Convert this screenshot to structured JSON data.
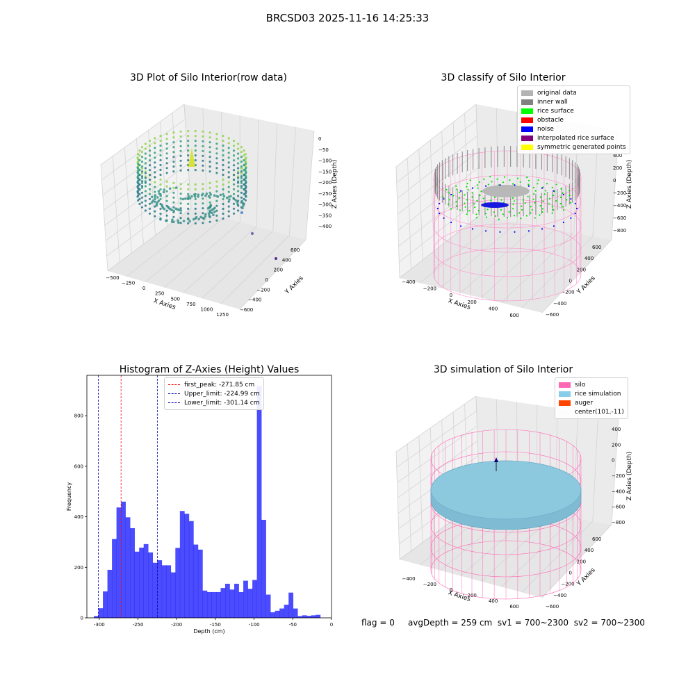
{
  "suptitle": "BRCSD03 2025-11-16 14:25:33",
  "status": {
    "flag": "flag = 0",
    "avgDepth": "avgDepth = 259 cm",
    "sv1": "sv1 = 700~2300",
    "sv2": "sv2 = 700~2300"
  },
  "panels": {
    "raw": {
      "title": "3D Plot of Silo Interior(row data)",
      "xlabel": "X Axies",
      "ylabel": "Y Axies",
      "zlabel": "Z Axies (Depth)",
      "xticks": [
        "−500",
        "−250",
        "0",
        "250",
        "500",
        "750",
        "1000",
        "1250"
      ],
      "yticks": [
        "600",
        "400",
        "200",
        "0",
        "−200",
        "−400",
        "−600"
      ],
      "zticks": [
        "0",
        "−50",
        "−100",
        "−150",
        "−200",
        "−250",
        "−300",
        "−350",
        "−400"
      ]
    },
    "classify": {
      "title": "3D classify of Silo Interior",
      "xlabel": "X Axies",
      "ylabel": "Y Axies",
      "zlabel": "Z Axies (Depth)",
      "xticks": [
        "−400",
        "−200",
        "0",
        "200",
        "400",
        "600"
      ],
      "yticks": [
        "600",
        "400",
        "200",
        "0",
        "−200",
        "−400",
        "−600"
      ],
      "zticks": [
        "400",
        "200",
        "0",
        "−200",
        "−400",
        "−600",
        "−800"
      ],
      "legend": [
        {
          "label": "original data",
          "color": "#b3b3b3"
        },
        {
          "label": "inner wall",
          "color": "#808080"
        },
        {
          "label": "rice surface",
          "color": "#00ff00"
        },
        {
          "label": "obstacle",
          "color": "#ff0000"
        },
        {
          "label": "noise",
          "color": "#0000ff"
        },
        {
          "label": "interpolated rice surface",
          "color": "#800080"
        },
        {
          "label": "symmetric generated points",
          "color": "#ffff00"
        }
      ]
    },
    "simulation": {
      "title": "3D simulation of Silo Interior",
      "xlabel": "X Axies",
      "ylabel": "Y Axies",
      "zlabel": "Z Axies (Depth)",
      "xticks": [
        "−400",
        "−200",
        "0",
        "200",
        "400",
        "600"
      ],
      "yticks": [
        "600",
        "400",
        "200",
        "0",
        "−200",
        "−400",
        "−600"
      ],
      "zticks": [
        "400",
        "200",
        "0",
        "−200",
        "−400",
        "−600",
        "−800"
      ],
      "legend": [
        {
          "label": "silo",
          "color": "#ff69b4"
        },
        {
          "label": "rice simulation",
          "color": "#87ceeb"
        },
        {
          "label": "auger",
          "color": "#ff4500"
        },
        {
          "label": "center(101,-11)",
          "color": ""
        }
      ]
    }
  },
  "chart_data": {
    "type": "bar",
    "title": "Histogram of Z-Axies (Height) Values",
    "xlabel": "Depth (cm)",
    "ylabel": "Frequency",
    "xlim": [
      -316,
      0
    ],
    "ylim": [
      0,
      960
    ],
    "xticks": [
      -300,
      -250,
      -200,
      -150,
      -100,
      -50,
      0
    ],
    "yticks": [
      0,
      200,
      400,
      600,
      800
    ],
    "bar_color": "#0000ff",
    "bin_start": -307,
    "bin_width": 5.85,
    "values": [
      7,
      38,
      105,
      190,
      312,
      437,
      460,
      398,
      355,
      262,
      278,
      292,
      259,
      218,
      228,
      208,
      208,
      180,
      277,
      423,
      412,
      383,
      290,
      270,
      108,
      102,
      102,
      102,
      118,
      135,
      112,
      135,
      102,
      147,
      115,
      150,
      918,
      388,
      92,
      22,
      28,
      37,
      52,
      100,
      37,
      7,
      10,
      8,
      10,
      12
    ],
    "lines": [
      {
        "label": "first_peak: -271.85 cm",
        "x": -271.85,
        "color": "#ff0000"
      },
      {
        "label": "Upper_limit: -224.99 cm",
        "x": -224.99,
        "color": "#0000b0"
      },
      {
        "label": "Lower_limit: -301.14 cm",
        "x": -301.14,
        "color": "#0000b0"
      }
    ],
    "legend_position": "top-center"
  }
}
